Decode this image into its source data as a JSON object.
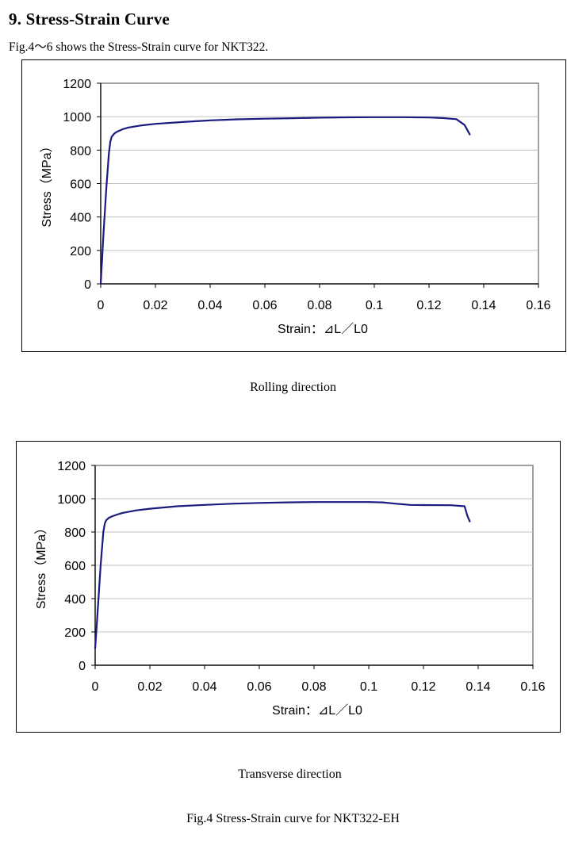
{
  "section": {
    "heading": "9. Stress-Strain Curve",
    "intro": "Fig.4～6 shows the Stress-Strain curve for NKT322."
  },
  "figure_caption": "Fig.4 Stress-Strain curve for NKT322-EH",
  "colors": {
    "curve": "#1a1a80",
    "grid": "#c0c0c0",
    "axis": "#000000"
  },
  "chart_data": [
    {
      "type": "line",
      "title": "",
      "caption": "Rolling direction",
      "xlabel": "Strain：⊿L／L0",
      "ylabel": "Stress（MPa）",
      "xlim": [
        0,
        0.16
      ],
      "ylim": [
        0,
        1200
      ],
      "xticks": [
        "0",
        "0.02",
        "0.04",
        "0.06",
        "0.08",
        "0.1",
        "0.12",
        "0.14",
        "0.16"
      ],
      "yticks": [
        "0",
        "200",
        "400",
        "600",
        "800",
        "1000",
        "1200"
      ],
      "grid": "horizontal",
      "legend": "none",
      "series": [
        {
          "x": [
            0,
            0.001,
            0.002,
            0.003,
            0.0035,
            0.004,
            0.005,
            0.006,
            0.008,
            0.01,
            0.015,
            0.02,
            0.03,
            0.04,
            0.05,
            0.06,
            0.07,
            0.08,
            0.09,
            0.1,
            0.11,
            0.12,
            0.125,
            0.13,
            0.133,
            0.135
          ],
          "y": [
            0,
            300,
            560,
            780,
            850,
            880,
            900,
            910,
            925,
            935,
            948,
            957,
            968,
            978,
            984,
            988,
            991,
            994,
            996,
            997,
            997,
            995,
            992,
            985,
            950,
            890
          ]
        }
      ]
    },
    {
      "type": "line",
      "title": "",
      "caption": "Transverse direction",
      "xlabel": "Strain：⊿L／L0",
      "ylabel": "Stress（MPa）",
      "xlim": [
        0,
        0.16
      ],
      "ylim": [
        0,
        1200
      ],
      "xticks": [
        "0",
        "0.02",
        "0.04",
        "0.06",
        "0.08",
        "0.1",
        "0.12",
        "0.14",
        "0.16"
      ],
      "yticks": [
        "0",
        "200",
        "400",
        "600",
        "800",
        "1000",
        "1200"
      ],
      "grid": "horizontal",
      "legend": "none",
      "series": [
        {
          "x": [
            0,
            0.001,
            0.002,
            0.003,
            0.0035,
            0.004,
            0.005,
            0.006,
            0.008,
            0.01,
            0.015,
            0.02,
            0.03,
            0.04,
            0.05,
            0.06,
            0.07,
            0.08,
            0.09,
            0.1,
            0.105,
            0.11,
            0.115,
            0.12,
            0.13,
            0.135,
            0.136,
            0.137
          ],
          "y": [
            100,
            350,
            600,
            800,
            850,
            870,
            885,
            893,
            905,
            915,
            930,
            940,
            955,
            963,
            970,
            975,
            978,
            980,
            980,
            980,
            978,
            970,
            963,
            962,
            961,
            955,
            900,
            860
          ]
        }
      ]
    }
  ]
}
